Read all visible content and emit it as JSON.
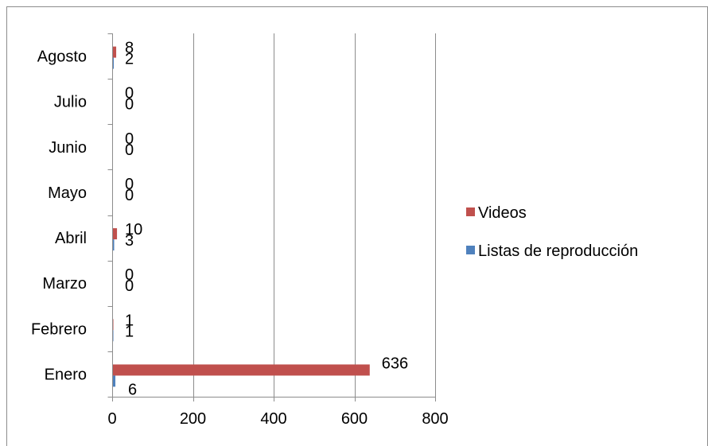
{
  "chart_data": {
    "type": "bar",
    "orientation": "horizontal",
    "categories": [
      "Enero",
      "Febrero",
      "Marzo",
      "Abril",
      "Mayo",
      "Junio",
      "Julio",
      "Agosto"
    ],
    "series": [
      {
        "name": "Listas de reproducción",
        "color": "#4f81bd",
        "values": [
          6,
          1,
          0,
          3,
          0,
          0,
          0,
          2
        ]
      },
      {
        "name": "Videos",
        "color": "#c0504d",
        "values": [
          636,
          1,
          0,
          10,
          0,
          0,
          0,
          8
        ]
      }
    ],
    "xlim": [
      0,
      800
    ],
    "x_ticks": [
      0,
      200,
      400,
      600,
      800
    ],
    "grid": "vertical",
    "legend_position": "right",
    "legend_order": [
      "Videos",
      "Listas de reproducción"
    ]
  }
}
